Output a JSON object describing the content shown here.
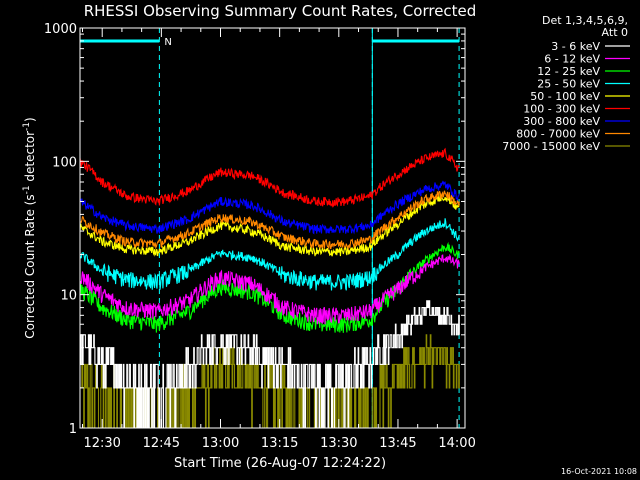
{
  "chart_data": {
    "type": "line",
    "title": "RHESSI Observing Summary Count Rates, Corrected",
    "xlabel": "Start Time (26-Aug-07 12:24:22)",
    "ylabel_prefix": "Corrected Count Rate (s",
    "ylabel_sup1": "-1",
    "ylabel_mid": " detector",
    "ylabel_sup2": "-1",
    "ylabel_suffix": ")",
    "yscale": "log",
    "ylim": [
      1,
      1000
    ],
    "xlim": [
      "12:24:22",
      "14:02"
    ],
    "xticks": [
      "12:30",
      "12:45",
      "13:00",
      "13:15",
      "13:30",
      "13:45",
      "14:00"
    ],
    "xtick_minutes": [
      30,
      45,
      60,
      75,
      90,
      105,
      120
    ],
    "yticks": [
      "1",
      "10",
      "100",
      "1000"
    ],
    "ytick_values": [
      1,
      10,
      100,
      1000
    ],
    "legend_header": [
      "Det 1,3,4,5,6,9,",
      "Att 0"
    ],
    "legend_position": "right, outside plot",
    "footer_timestamp": "16-Oct-2021 10:08",
    "annotation": {
      "label": "N",
      "color": "#00ffff",
      "intervals_minutes": [
        [
          24.4,
          44.5
        ],
        [
          98.5,
          120.5
        ]
      ],
      "boundaries_minutes": [
        44.5,
        98.5,
        120.5
      ]
    },
    "series": [
      {
        "name": "3 - 6 keV",
        "color": "#ffffff",
        "kind": "quantized",
        "level_step": 1,
        "points": [
          [
            24.4,
            4.5
          ],
          [
            30,
            3
          ],
          [
            40,
            2
          ],
          [
            50,
            2.5
          ],
          [
            60,
            4.5
          ],
          [
            70,
            3.5
          ],
          [
            80,
            2.5
          ],
          [
            90,
            2
          ],
          [
            97,
            3
          ],
          [
            105,
            5
          ],
          [
            113,
            8
          ],
          [
            120,
            6
          ]
        ]
      },
      {
        "name": "6 - 12 keV",
        "color": "#ff00ff",
        "kind": "line",
        "points": [
          [
            24.4,
            14
          ],
          [
            30,
            10
          ],
          [
            36,
            8
          ],
          [
            44,
            7.5
          ],
          [
            52,
            9
          ],
          [
            60,
            13.5
          ],
          [
            68,
            12
          ],
          [
            76,
            8
          ],
          [
            84,
            7
          ],
          [
            92,
            7
          ],
          [
            98,
            7.5
          ],
          [
            105,
            11
          ],
          [
            112,
            16
          ],
          [
            117,
            19
          ],
          [
            120,
            17
          ]
        ]
      },
      {
        "name": "12 - 25 keV",
        "color": "#00ff00",
        "kind": "line",
        "points": [
          [
            24.4,
            11
          ],
          [
            30,
            8
          ],
          [
            36,
            6.5
          ],
          [
            44,
            6
          ],
          [
            52,
            7.5
          ],
          [
            60,
            11.5
          ],
          [
            68,
            10.5
          ],
          [
            76,
            7
          ],
          [
            84,
            6
          ],
          [
            92,
            6
          ],
          [
            98,
            6.5
          ],
          [
            105,
            11
          ],
          [
            112,
            18
          ],
          [
            117,
            23
          ],
          [
            120,
            20
          ]
        ]
      },
      {
        "name": "25 - 50 keV",
        "color": "#00ffff",
        "kind": "line",
        "points": [
          [
            24.4,
            20
          ],
          [
            30,
            15
          ],
          [
            36,
            13
          ],
          [
            44,
            12.5
          ],
          [
            52,
            15
          ],
          [
            60,
            20.5
          ],
          [
            68,
            19
          ],
          [
            76,
            14
          ],
          [
            84,
            12.5
          ],
          [
            92,
            12.5
          ],
          [
            98,
            13.5
          ],
          [
            105,
            20
          ],
          [
            112,
            30
          ],
          [
            117,
            35
          ],
          [
            120,
            27
          ]
        ]
      },
      {
        "name": "50 - 100 keV",
        "color": "#ffff00",
        "kind": "line",
        "points": [
          [
            24.4,
            32
          ],
          [
            30,
            25
          ],
          [
            36,
            22
          ],
          [
            44,
            21
          ],
          [
            52,
            25
          ],
          [
            60,
            33
          ],
          [
            68,
            30
          ],
          [
            76,
            23
          ],
          [
            84,
            21
          ],
          [
            92,
            21
          ],
          [
            98,
            23
          ],
          [
            105,
            34
          ],
          [
            112,
            48
          ],
          [
            117,
            55
          ],
          [
            120,
            45
          ]
        ]
      },
      {
        "name": "100 - 300 keV",
        "color": "#ff0000",
        "kind": "line",
        "points": [
          [
            24.4,
            100
          ],
          [
            30,
            70
          ],
          [
            36,
            55
          ],
          [
            44,
            50
          ],
          [
            52,
            60
          ],
          [
            60,
            83
          ],
          [
            68,
            78
          ],
          [
            76,
            58
          ],
          [
            84,
            50
          ],
          [
            92,
            50
          ],
          [
            98,
            55
          ],
          [
            105,
            80
          ],
          [
            112,
            105
          ],
          [
            117,
            115
          ],
          [
            120,
            90
          ]
        ]
      },
      {
        "name": "300 - 800 keV",
        "color": "#0000ff",
        "kind": "line",
        "points": [
          [
            24.4,
            50
          ],
          [
            30,
            38
          ],
          [
            36,
            33
          ],
          [
            44,
            31
          ],
          [
            52,
            37
          ],
          [
            60,
            50
          ],
          [
            68,
            47
          ],
          [
            76,
            35
          ],
          [
            84,
            31
          ],
          [
            92,
            31
          ],
          [
            98,
            33
          ],
          [
            105,
            48
          ],
          [
            112,
            62
          ],
          [
            117,
            67
          ],
          [
            120,
            55
          ]
        ]
      },
      {
        "name": "800 - 7000 keV",
        "color": "#ff8800",
        "kind": "line",
        "points": [
          [
            24.4,
            37
          ],
          [
            30,
            29
          ],
          [
            36,
            25
          ],
          [
            44,
            24
          ],
          [
            52,
            29
          ],
          [
            60,
            38
          ],
          [
            68,
            35
          ],
          [
            76,
            27
          ],
          [
            84,
            24
          ],
          [
            92,
            24
          ],
          [
            98,
            26
          ],
          [
            105,
            38
          ],
          [
            112,
            52
          ],
          [
            117,
            58
          ],
          [
            120,
            48
          ]
        ]
      },
      {
        "name": "7000 - 15000 keV",
        "color": "#8b8b00",
        "kind": "quantized",
        "level_step": 1,
        "points": [
          [
            24.4,
            2
          ],
          [
            35,
            1.5
          ],
          [
            45,
            1
          ],
          [
            55,
            2
          ],
          [
            62,
            3
          ],
          [
            70,
            2
          ],
          [
            80,
            1.5
          ],
          [
            90,
            1
          ],
          [
            98,
            1.5
          ],
          [
            105,
            2.5
          ],
          [
            112,
            3.5
          ],
          [
            120,
            3
          ]
        ]
      }
    ]
  }
}
